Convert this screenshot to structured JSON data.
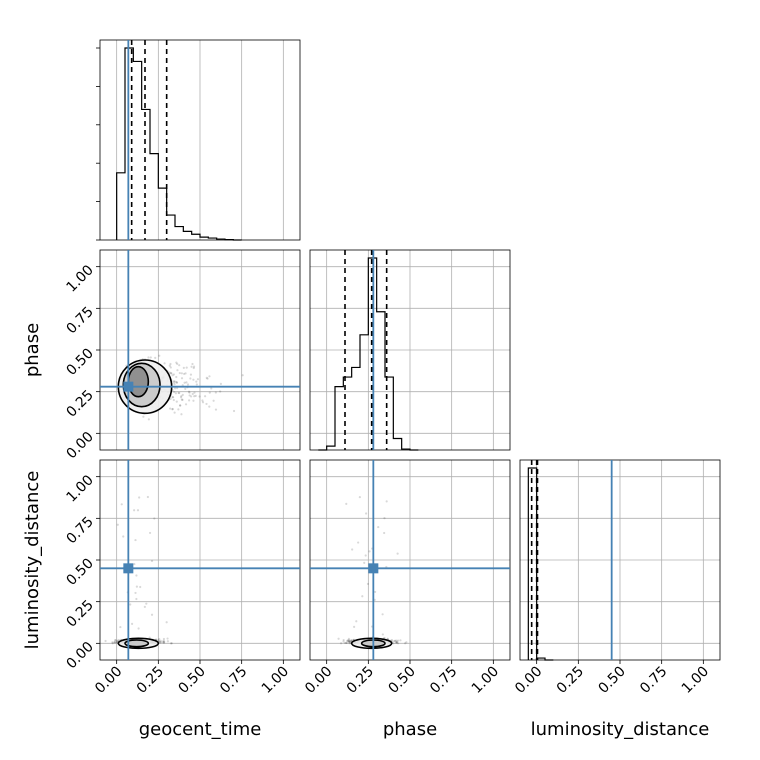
{
  "chart_data": {
    "type": "corner",
    "parameters": [
      "geocent_time",
      "phase",
      "luminosity_distance"
    ],
    "axis_range": [
      -0.1,
      1.1
    ],
    "ticks": [
      0.0,
      0.25,
      0.5,
      0.75,
      1.0
    ],
    "tick_labels": [
      "0.00",
      "0.25",
      "0.50",
      "0.75",
      "1.00"
    ],
    "grid": true,
    "truth_color": "#4682b4",
    "truths": {
      "geocent_time": 0.07,
      "phase": 0.28,
      "luminosity_distance": 0.45
    },
    "histograms": [
      {
        "parameter": "geocent_time",
        "bin_edges": [
          0.0,
          0.05,
          0.1,
          0.15,
          0.2,
          0.25,
          0.3,
          0.35,
          0.4,
          0.45,
          0.5,
          0.55,
          0.6,
          0.65,
          0.7,
          0.75
        ],
        "heights": [
          0.35,
          1.0,
          0.93,
          0.68,
          0.45,
          0.27,
          0.13,
          0.07,
          0.045,
          0.03,
          0.015,
          0.01,
          0.005,
          0.002,
          0.0
        ],
        "quantiles": [
          0.09,
          0.17,
          0.3
        ]
      },
      {
        "parameter": "phase",
        "bin_edges": [
          -0.05,
          0.0,
          0.05,
          0.1,
          0.15,
          0.2,
          0.25,
          0.3,
          0.35,
          0.4,
          0.45,
          0.5,
          0.55
        ],
        "heights": [
          0.0,
          0.02,
          0.33,
          0.38,
          0.43,
          0.6,
          1.0,
          0.72,
          0.38,
          0.06,
          0.005,
          0.0
        ],
        "quantiles": [
          0.11,
          0.27,
          0.36
        ]
      },
      {
        "parameter": "luminosity_distance",
        "bin_edges": [
          -0.05,
          0.0,
          0.05,
          0.1
        ],
        "heights": [
          1.0,
          0.01,
          0.0
        ],
        "quantiles": [
          -0.03,
          0.0,
          0.005
        ]
      }
    ],
    "scatter_panels": [
      {
        "x": "geocent_time",
        "y": "phase",
        "contours": [
          {
            "cx": 0.17,
            "cy": 0.28,
            "rx": 0.16,
            "ry": 0.16
          },
          {
            "cx": 0.15,
            "cy": 0.29,
            "rx": 0.11,
            "ry": 0.13
          },
          {
            "cx": 0.13,
            "cy": 0.31,
            "rx": 0.06,
            "ry": 0.09
          }
        ],
        "cloud": {
          "x_range": [
            0.02,
            0.75
          ],
          "y_range": [
            0.02,
            0.55
          ]
        }
      },
      {
        "x": "geocent_time",
        "y": "luminosity_distance",
        "contours": [
          {
            "cx": 0.13,
            "cy": 0.0,
            "rx": 0.12,
            "ry": 0.03
          },
          {
            "cx": 0.12,
            "cy": 0.0,
            "rx": 0.07,
            "ry": 0.02
          }
        ],
        "cloud": {
          "x_range": [
            0.02,
            0.8
          ],
          "y_range": [
            -0.02,
            0.88
          ]
        }
      },
      {
        "x": "phase",
        "y": "luminosity_distance",
        "contours": [
          {
            "cx": 0.27,
            "cy": 0.0,
            "rx": 0.12,
            "ry": 0.03
          },
          {
            "cx": 0.28,
            "cy": 0.0,
            "rx": 0.07,
            "ry": 0.02
          }
        ],
        "cloud": {
          "x_range": [
            0.0,
            0.5
          ],
          "y_range": [
            -0.02,
            0.88
          ]
        }
      }
    ]
  }
}
